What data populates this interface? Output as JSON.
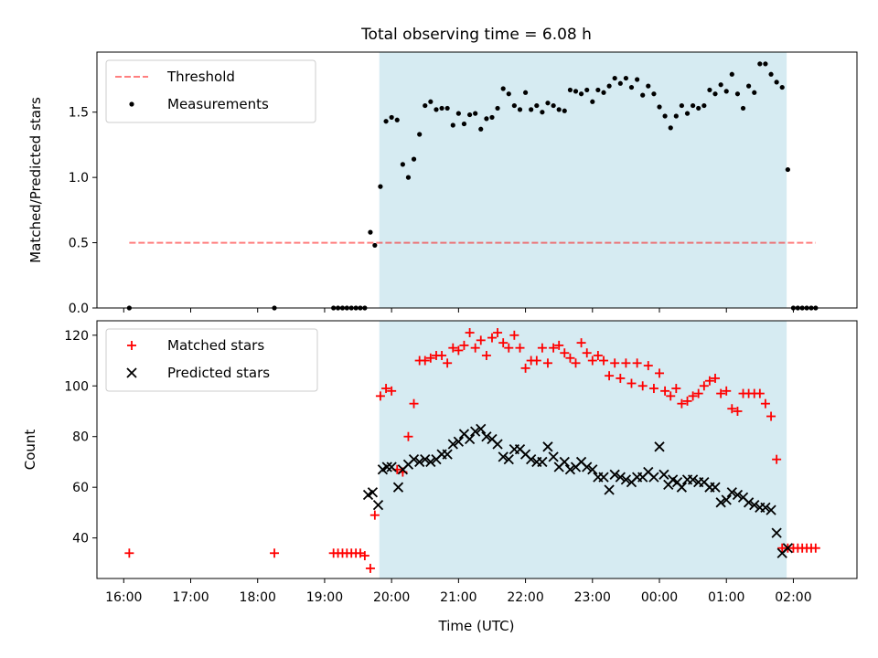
{
  "figure": {
    "title": "Total observing time = 6.08 h",
    "xlabel": "Time (UTC)",
    "x_tick_labels": [
      "16:00",
      "17:00",
      "18:00",
      "19:00",
      "20:00",
      "21:00",
      "22:00",
      "23:00",
      "00:00",
      "01:00",
      "02:00"
    ]
  },
  "colors": {
    "shade": "#add8e6",
    "threshold": "#ff0000",
    "measurements": "#000000",
    "matched": "#ff0000",
    "predicted": "#000000"
  },
  "chart_data": [
    {
      "type": "scatter",
      "ylabel": "Matched/Predicted stars",
      "xlim_hours": [
        15.6,
        26.95
      ],
      "ylim": [
        0,
        1.96
      ],
      "y_ticks": [
        0.0,
        0.5,
        1.0,
        1.5
      ],
      "y_tick_labels": [
        "0.0",
        "0.5",
        "1.0",
        "1.5"
      ],
      "legend_position": "upper-left",
      "observing_window_hours": [
        19.817,
        25.9
      ],
      "legend": [
        "Threshold",
        "Measurements"
      ],
      "threshold": {
        "name": "Threshold",
        "y": 0.5,
        "x_range_hours": [
          16.083,
          26.333
        ]
      },
      "series": [
        {
          "name": "Measurements",
          "x_hours": [
            16.083,
            18.25,
            19.133,
            19.2,
            19.267,
            19.333,
            19.4,
            19.467,
            19.533,
            19.6,
            19.683,
            19.75,
            19.833,
            19.917,
            20.0,
            20.083,
            20.167,
            20.25,
            20.333,
            20.417,
            20.5,
            20.583,
            20.667,
            20.75,
            20.833,
            20.917,
            21.0,
            21.083,
            21.167,
            21.25,
            21.333,
            21.417,
            21.5,
            21.583,
            21.667,
            21.75,
            21.833,
            21.917,
            22.0,
            22.083,
            22.167,
            22.25,
            22.333,
            22.417,
            22.5,
            22.583,
            22.667,
            22.75,
            22.833,
            22.917,
            23.0,
            23.083,
            23.167,
            23.25,
            23.333,
            23.417,
            23.5,
            23.583,
            23.667,
            23.75,
            23.833,
            23.917,
            24.0,
            24.083,
            24.167,
            24.25,
            24.333,
            24.417,
            24.5,
            24.583,
            24.667,
            24.75,
            24.833,
            24.917,
            25.0,
            25.083,
            25.167,
            25.25,
            25.333,
            25.417,
            25.5,
            25.583,
            25.667,
            25.75,
            25.833,
            25.917,
            26.0,
            26.067,
            26.133,
            26.2,
            26.267,
            26.333
          ],
          "y": [
            0.0,
            0.0,
            0.0,
            0.0,
            0.0,
            0.0,
            0.0,
            0.0,
            0.0,
            0.0,
            0.58,
            0.48,
            0.93,
            1.43,
            1.46,
            1.44,
            1.1,
            1.0,
            1.14,
            1.33,
            1.55,
            1.58,
            1.52,
            1.53,
            1.53,
            1.4,
            1.49,
            1.41,
            1.48,
            1.49,
            1.37,
            1.45,
            1.46,
            1.53,
            1.68,
            1.64,
            1.55,
            1.52,
            1.65,
            1.52,
            1.55,
            1.5,
            1.57,
            1.55,
            1.52,
            1.51,
            1.67,
            1.66,
            1.64,
            1.67,
            1.58,
            1.67,
            1.65,
            1.7,
            1.76,
            1.72,
            1.76,
            1.69,
            1.75,
            1.63,
            1.7,
            1.64,
            1.54,
            1.47,
            1.38,
            1.47,
            1.55,
            1.49,
            1.55,
            1.53,
            1.55,
            1.67,
            1.64,
            1.71,
            1.66,
            1.79,
            1.64,
            1.53,
            1.7,
            1.65,
            1.87,
            1.87,
            1.79,
            1.73,
            1.69,
            1.06,
            0.0,
            0.0,
            0.0,
            0.0,
            0.0,
            0.0
          ]
        }
      ]
    },
    {
      "type": "scatter",
      "ylabel": "Count",
      "xlim_hours": [
        15.6,
        26.95
      ],
      "ylim": [
        24.0,
        125.7
      ],
      "y_ticks": [
        40,
        60,
        80,
        100,
        120
      ],
      "y_tick_labels": [
        "40",
        "60",
        "80",
        "100",
        "120"
      ],
      "legend_position": "upper-left",
      "observing_window_hours": [
        19.817,
        25.9
      ],
      "legend": [
        "Matched stars",
        "Predicted stars"
      ],
      "series": [
        {
          "name": "Matched stars",
          "marker": "plus",
          "x_hours": [
            16.083,
            18.25,
            19.133,
            19.2,
            19.267,
            19.333,
            19.4,
            19.467,
            19.533,
            19.6,
            19.683,
            19.75,
            19.833,
            19.917,
            20.0,
            20.083,
            20.167,
            20.25,
            20.333,
            20.417,
            20.5,
            20.583,
            20.667,
            20.75,
            20.833,
            20.917,
            21.0,
            21.083,
            21.167,
            21.25,
            21.333,
            21.417,
            21.5,
            21.583,
            21.667,
            21.75,
            21.833,
            21.917,
            22.0,
            22.083,
            22.167,
            22.25,
            22.333,
            22.417,
            22.5,
            22.583,
            22.667,
            22.75,
            22.833,
            22.917,
            23.0,
            23.083,
            23.167,
            23.25,
            23.333,
            23.417,
            23.5,
            23.583,
            23.667,
            23.75,
            23.833,
            23.917,
            24.0,
            24.083,
            24.167,
            24.25,
            24.333,
            24.417,
            24.5,
            24.583,
            24.667,
            24.75,
            24.833,
            24.917,
            25.0,
            25.083,
            25.167,
            25.25,
            25.333,
            25.417,
            25.5,
            25.583,
            25.667,
            25.75,
            25.833,
            25.917,
            26.0,
            26.067,
            26.133,
            26.2,
            26.267,
            26.333
          ],
          "y": [
            34,
            34,
            34,
            34,
            34,
            34,
            34,
            34,
            34,
            33,
            28,
            49,
            96,
            99,
            98,
            67,
            66,
            80,
            93,
            110,
            110,
            111,
            112,
            112,
            109,
            115,
            114,
            116,
            121,
            115,
            118,
            112,
            119,
            121,
            117,
            115,
            120,
            115,
            107,
            110,
            110,
            115,
            109,
            115,
            116,
            113,
            111,
            109,
            117,
            113,
            110,
            112,
            110,
            104,
            109,
            103,
            109,
            101,
            109,
            100,
            108,
            99,
            105,
            98,
            96,
            99,
            93,
            94,
            96,
            97,
            100,
            102,
            103,
            97,
            98,
            91,
            90,
            97,
            97,
            97,
            97,
            93,
            88,
            71,
            36,
            36,
            36,
            36,
            36,
            36,
            36,
            36
          ]
        },
        {
          "name": "Predicted stars",
          "marker": "x",
          "x_hours": [
            19.65,
            19.717,
            19.8,
            19.867,
            19.933,
            20.0,
            20.1,
            20.167,
            20.25,
            20.333,
            20.417,
            20.5,
            20.583,
            20.667,
            20.75,
            20.833,
            20.917,
            21.0,
            21.083,
            21.167,
            21.25,
            21.333,
            21.417,
            21.5,
            21.583,
            21.667,
            21.75,
            21.833,
            21.917,
            22.0,
            22.083,
            22.167,
            22.25,
            22.333,
            22.417,
            22.5,
            22.583,
            22.667,
            22.75,
            22.833,
            22.917,
            23.0,
            23.083,
            23.167,
            23.25,
            23.333,
            23.417,
            23.5,
            23.583,
            23.667,
            23.75,
            23.833,
            23.917,
            24.0,
            24.067,
            24.133,
            24.2,
            24.267,
            24.333,
            24.417,
            24.5,
            24.583,
            24.667,
            24.75,
            24.833,
            24.917,
            25.0,
            25.083,
            25.167,
            25.25,
            25.333,
            25.417,
            25.5,
            25.583,
            25.667,
            25.75,
            25.833,
            25.917
          ],
          "y": [
            57,
            58,
            53,
            67,
            68,
            68,
            60,
            67,
            69,
            71,
            70,
            71,
            70,
            71,
            73,
            73,
            77,
            78,
            81,
            79,
            82,
            83,
            80,
            79,
            77,
            72,
            71,
            75,
            75,
            73,
            71,
            70,
            70,
            76,
            72,
            68,
            70,
            67,
            68,
            70,
            68,
            67,
            64,
            64,
            59,
            65,
            64,
            63,
            62,
            64,
            64,
            66,
            64,
            76,
            65,
            61,
            63,
            62,
            60,
            63,
            63,
            62,
            62,
            60,
            60,
            54,
            55,
            58,
            57,
            56,
            54,
            53,
            52,
            52,
            51,
            42,
            34,
            36
          ]
        }
      ]
    }
  ]
}
